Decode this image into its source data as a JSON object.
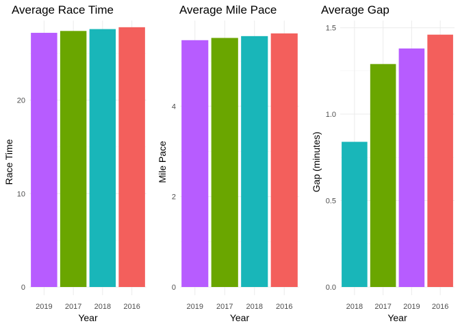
{
  "chart_data": [
    {
      "type": "bar",
      "title": "Average Race Time",
      "xlabel": "Year",
      "ylabel": "Race Time",
      "categories": [
        "2019",
        "2017",
        "2018",
        "2016"
      ],
      "values": [
        27.2,
        27.4,
        27.6,
        27.8
      ],
      "colors": [
        "#b75cff",
        "#6aa600",
        "#19b6b9",
        "#f35f5c"
      ],
      "ylim": [
        0,
        28.3
      ],
      "yticks": [
        0,
        10,
        20
      ],
      "grid": true,
      "legend": "none"
    },
    {
      "type": "bar",
      "title": "Average Mile Pace",
      "xlabel": "Year",
      "ylabel": "Mile Pace",
      "categories": [
        "2019",
        "2017",
        "2018",
        "2016"
      ],
      "values": [
        5.46,
        5.51,
        5.55,
        5.61
      ],
      "colors": [
        "#b75cff",
        "#6aa600",
        "#19b6b9",
        "#f35f5c"
      ],
      "ylim": [
        0,
        5.85
      ],
      "yticks": [
        0,
        2,
        4
      ],
      "grid": true,
      "legend": "none"
    },
    {
      "type": "bar",
      "title": "Average Gap",
      "xlabel": "Year",
      "ylabel": "Gap (minutes)",
      "categories": [
        "2018",
        "2017",
        "2019",
        "2016"
      ],
      "values": [
        0.84,
        1.29,
        1.38,
        1.46
      ],
      "colors": [
        "#19b6b9",
        "#6aa600",
        "#b75cff",
        "#f35f5c"
      ],
      "ylim": [
        0,
        1.53
      ],
      "yticks": [
        0.0,
        0.5,
        1.0,
        1.5
      ],
      "ytick_labels": [
        "0.0",
        "0.5",
        "1.0",
        "1.5"
      ],
      "grid": true,
      "legend": "none"
    }
  ]
}
